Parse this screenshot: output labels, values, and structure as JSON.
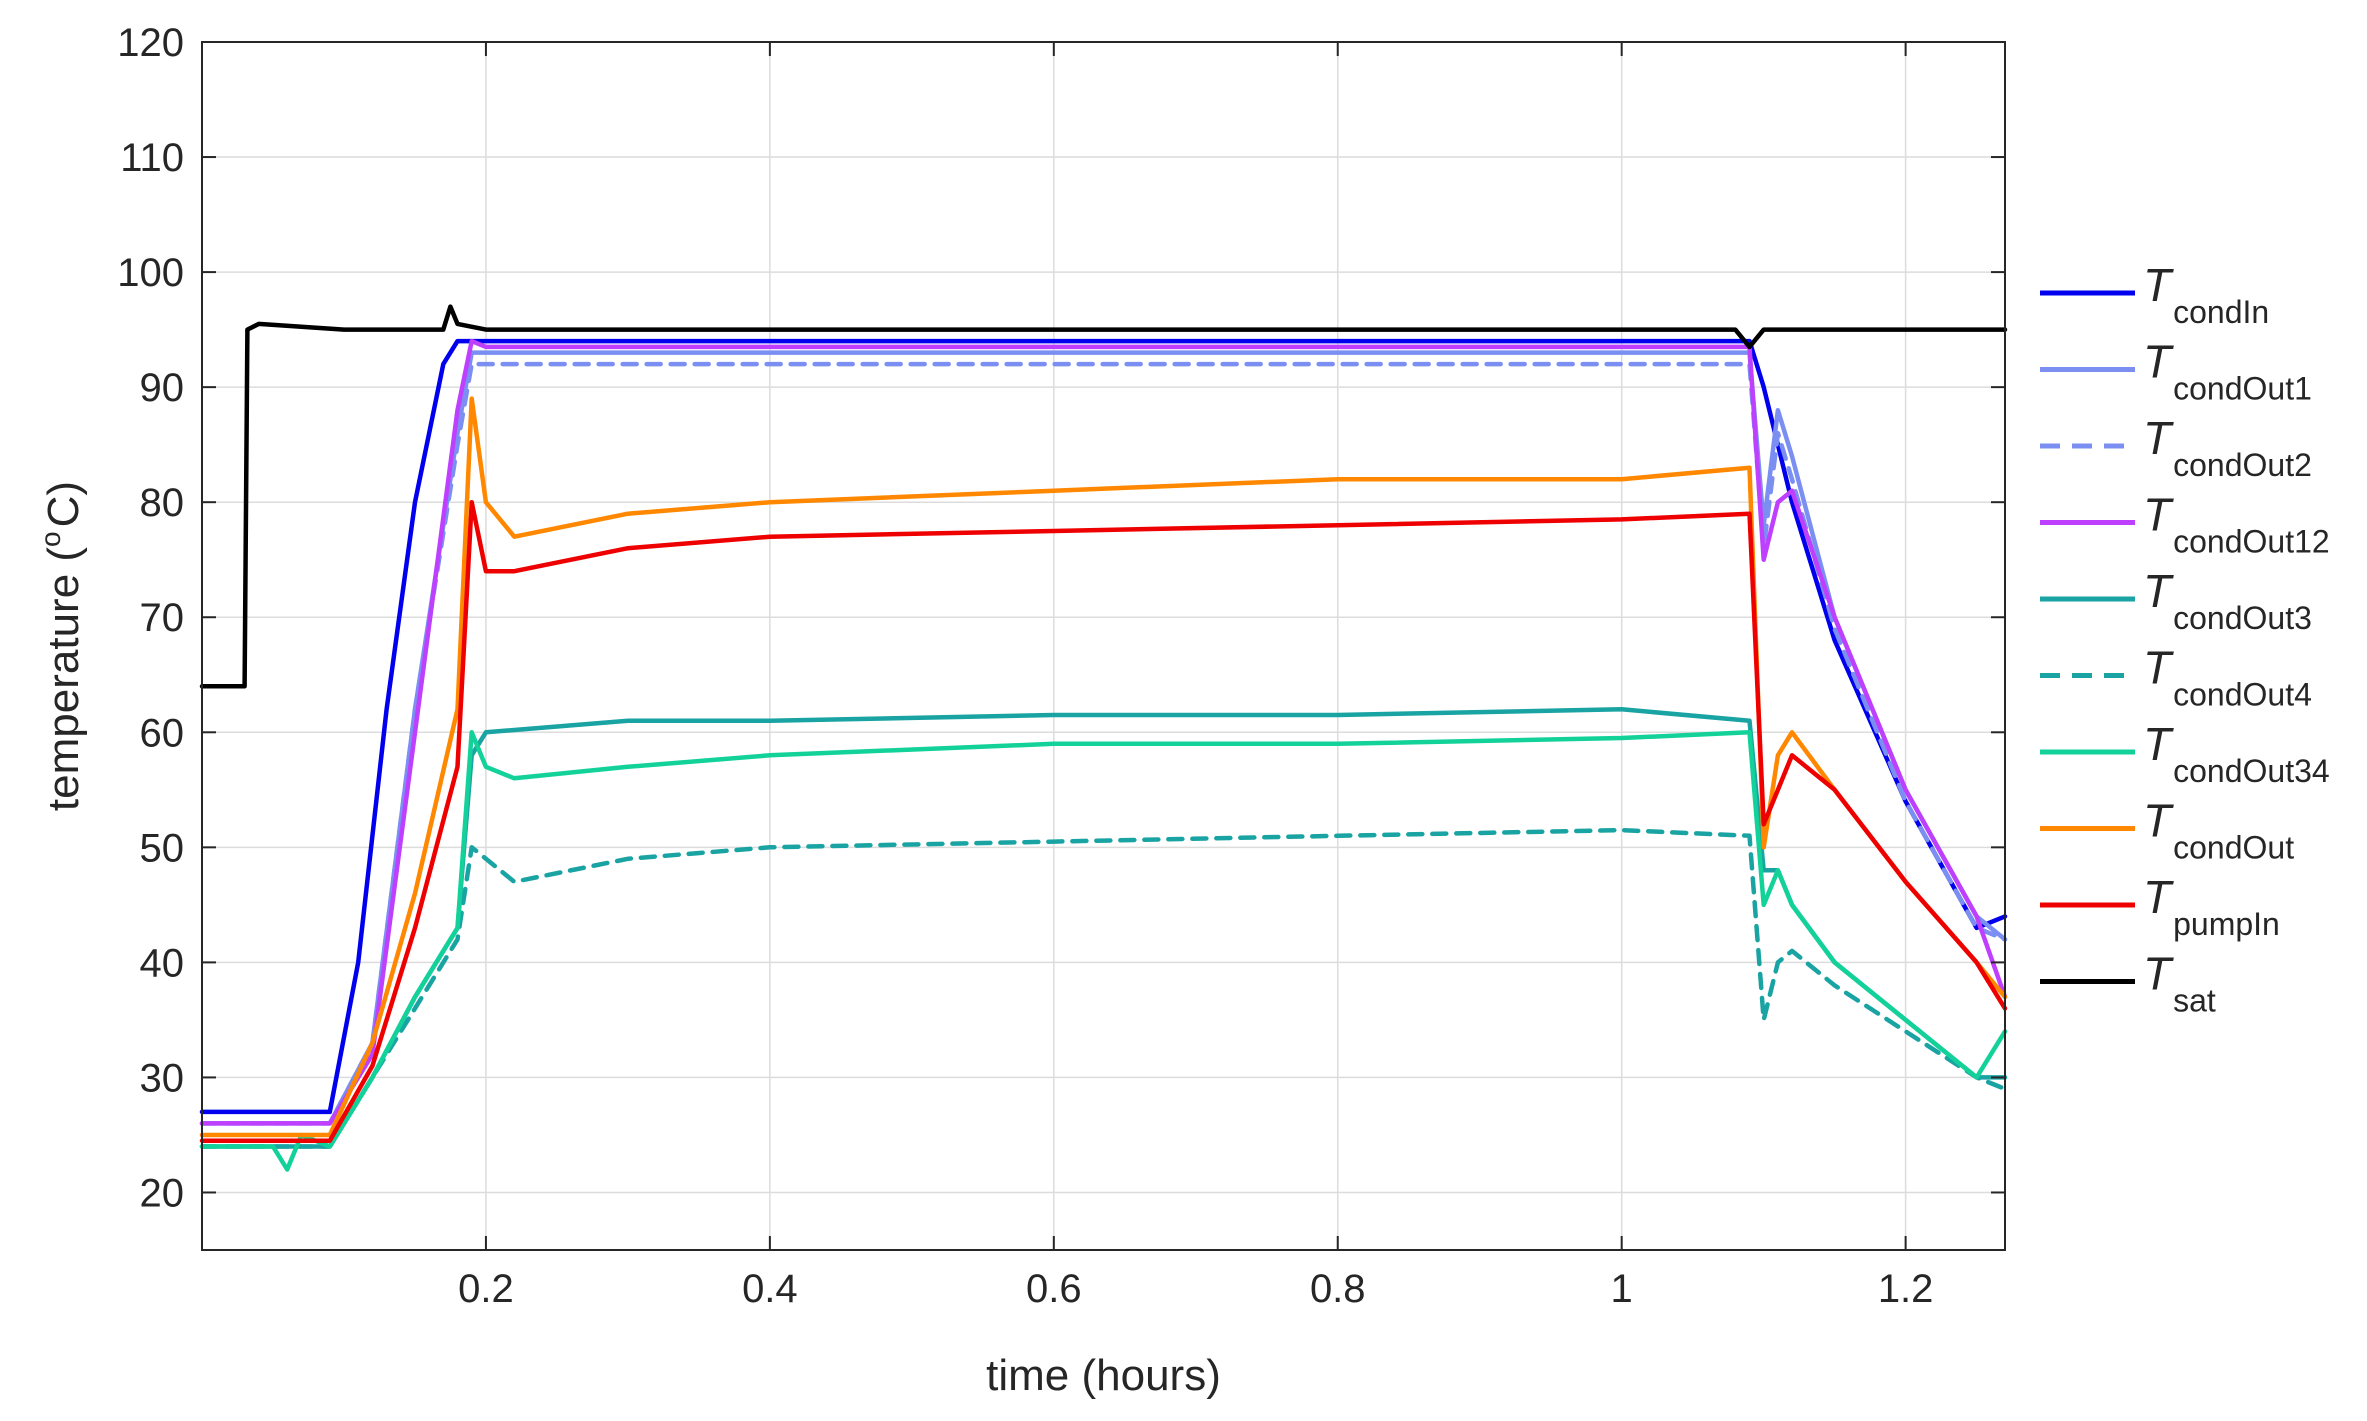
{
  "chart_data": {
    "type": "line",
    "title": "",
    "xlabel": "time (hours)",
    "ylabel_main": "temperature (",
    "ylabel_degree": "o",
    "ylabel_unit": "C)",
    "xlim": [
      0,
      1.27
    ],
    "ylim": [
      15,
      120
    ],
    "xticks": [
      0.2,
      0.4,
      0.6,
      0.8,
      1,
      1.2
    ],
    "xtick_labels": [
      "0.2",
      "0.4",
      "0.6",
      "0.8",
      "1",
      "1.2"
    ],
    "yticks": [
      20,
      30,
      40,
      50,
      60,
      70,
      80,
      90,
      100,
      110,
      120
    ],
    "ytick_labels": [
      "20",
      "30",
      "40",
      "50",
      "60",
      "70",
      "80",
      "90",
      "100",
      "110",
      "120"
    ],
    "grid": true,
    "legend_position": "outside-right",
    "series": [
      {
        "name": "T",
        "sub": "condIn",
        "color": "#0000ee",
        "dash": "solid",
        "points": [
          [
            0,
            27
          ],
          [
            0.09,
            27
          ],
          [
            0.11,
            40
          ],
          [
            0.13,
            62
          ],
          [
            0.15,
            80
          ],
          [
            0.17,
            92
          ],
          [
            0.18,
            94
          ],
          [
            0.2,
            94
          ],
          [
            0.4,
            94
          ],
          [
            0.6,
            94
          ],
          [
            0.8,
            94
          ],
          [
            1.0,
            94
          ],
          [
            1.09,
            94
          ],
          [
            1.1,
            90
          ],
          [
            1.12,
            80
          ],
          [
            1.15,
            68
          ],
          [
            1.2,
            54
          ],
          [
            1.25,
            43
          ],
          [
            1.27,
            44
          ]
        ]
      },
      {
        "name": "T",
        "sub": "condOut1",
        "color": "#7b8ff2",
        "dash": "solid",
        "points": [
          [
            0,
            26
          ],
          [
            0.09,
            26
          ],
          [
            0.12,
            33
          ],
          [
            0.15,
            62
          ],
          [
            0.18,
            86
          ],
          [
            0.19,
            93
          ],
          [
            0.2,
            93
          ],
          [
            0.4,
            93
          ],
          [
            0.6,
            93
          ],
          [
            0.8,
            93
          ],
          [
            1.0,
            93
          ],
          [
            1.09,
            93
          ],
          [
            1.1,
            78
          ],
          [
            1.11,
            88
          ],
          [
            1.12,
            84
          ],
          [
            1.15,
            70
          ],
          [
            1.2,
            55
          ],
          [
            1.25,
            44
          ],
          [
            1.27,
            42
          ]
        ]
      },
      {
        "name": "T",
        "sub": "condOut2",
        "color": "#7b8ff2",
        "dash": "dash",
        "points": [
          [
            0,
            26
          ],
          [
            0.09,
            26
          ],
          [
            0.12,
            33
          ],
          [
            0.15,
            62
          ],
          [
            0.18,
            85
          ],
          [
            0.19,
            92
          ],
          [
            0.2,
            92
          ],
          [
            0.4,
            92
          ],
          [
            0.6,
            92
          ],
          [
            0.8,
            92
          ],
          [
            1.0,
            92
          ],
          [
            1.09,
            92
          ],
          [
            1.1,
            76
          ],
          [
            1.11,
            86
          ],
          [
            1.12,
            82
          ],
          [
            1.15,
            69
          ],
          [
            1.2,
            54
          ],
          [
            1.25,
            43
          ],
          [
            1.27,
            42
          ]
        ]
      },
      {
        "name": "T",
        "sub": "condOut12",
        "color": "#bf3fff",
        "dash": "solid",
        "points": [
          [
            0,
            26
          ],
          [
            0.09,
            26
          ],
          [
            0.12,
            32
          ],
          [
            0.15,
            60
          ],
          [
            0.18,
            88
          ],
          [
            0.19,
            94
          ],
          [
            0.2,
            93.5
          ],
          [
            0.4,
            93.5
          ],
          [
            0.6,
            93.5
          ],
          [
            0.8,
            93.5
          ],
          [
            1.0,
            93.5
          ],
          [
            1.09,
            93.5
          ],
          [
            1.1,
            75
          ],
          [
            1.11,
            80
          ],
          [
            1.12,
            81
          ],
          [
            1.15,
            70
          ],
          [
            1.2,
            55
          ],
          [
            1.25,
            44
          ],
          [
            1.27,
            37
          ]
        ]
      },
      {
        "name": "T",
        "sub": "condOut3",
        "color": "#1aa3a3",
        "dash": "solid",
        "points": [
          [
            0,
            24
          ],
          [
            0.09,
            24
          ],
          [
            0.12,
            30
          ],
          [
            0.15,
            37
          ],
          [
            0.18,
            43
          ],
          [
            0.19,
            58
          ],
          [
            0.2,
            60
          ],
          [
            0.3,
            61
          ],
          [
            0.4,
            61
          ],
          [
            0.6,
            61.5
          ],
          [
            0.8,
            61.5
          ],
          [
            1.0,
            62
          ],
          [
            1.09,
            61
          ],
          [
            1.1,
            48
          ],
          [
            1.11,
            48
          ],
          [
            1.12,
            45
          ],
          [
            1.15,
            40
          ],
          [
            1.2,
            35
          ],
          [
            1.25,
            30
          ],
          [
            1.27,
            30
          ]
        ]
      },
      {
        "name": "T",
        "sub": "condOut4",
        "color": "#1aa3a3",
        "dash": "dash",
        "points": [
          [
            0,
            24
          ],
          [
            0.09,
            24
          ],
          [
            0.12,
            30
          ],
          [
            0.15,
            36
          ],
          [
            0.18,
            42
          ],
          [
            0.19,
            50
          ],
          [
            0.2,
            49
          ],
          [
            0.22,
            47
          ],
          [
            0.3,
            49
          ],
          [
            0.4,
            50
          ],
          [
            0.6,
            50.5
          ],
          [
            0.8,
            51
          ],
          [
            1.0,
            51.5
          ],
          [
            1.09,
            51
          ],
          [
            1.1,
            35
          ],
          [
            1.11,
            40
          ],
          [
            1.12,
            41
          ],
          [
            1.15,
            38
          ],
          [
            1.2,
            34
          ],
          [
            1.25,
            30
          ],
          [
            1.27,
            29
          ]
        ]
      },
      {
        "name": "T",
        "sub": "condOut34",
        "color": "#12d29a",
        "dash": "solid",
        "points": [
          [
            0,
            24
          ],
          [
            0.05,
            24
          ],
          [
            0.06,
            22
          ],
          [
            0.07,
            25
          ],
          [
            0.09,
            24
          ],
          [
            0.12,
            30
          ],
          [
            0.15,
            37
          ],
          [
            0.18,
            43
          ],
          [
            0.19,
            60
          ],
          [
            0.2,
            57
          ],
          [
            0.22,
            56
          ],
          [
            0.3,
            57
          ],
          [
            0.4,
            58
          ],
          [
            0.6,
            59
          ],
          [
            0.8,
            59
          ],
          [
            1.0,
            59.5
          ],
          [
            1.09,
            60
          ],
          [
            1.1,
            45
          ],
          [
            1.11,
            48
          ],
          [
            1.12,
            45
          ],
          [
            1.15,
            40
          ],
          [
            1.2,
            35
          ],
          [
            1.25,
            30
          ],
          [
            1.27,
            34
          ]
        ]
      },
      {
        "name": "T",
        "sub": "condOut",
        "color": "#ff8800",
        "dash": "solid",
        "points": [
          [
            0,
            25
          ],
          [
            0.09,
            25
          ],
          [
            0.12,
            33
          ],
          [
            0.15,
            46
          ],
          [
            0.18,
            62
          ],
          [
            0.19,
            89
          ],
          [
            0.2,
            80
          ],
          [
            0.22,
            77
          ],
          [
            0.3,
            79
          ],
          [
            0.4,
            80
          ],
          [
            0.6,
            81
          ],
          [
            0.8,
            82
          ],
          [
            1.0,
            82
          ],
          [
            1.09,
            83
          ],
          [
            1.1,
            50
          ],
          [
            1.11,
            58
          ],
          [
            1.12,
            60
          ],
          [
            1.15,
            55
          ],
          [
            1.2,
            47
          ],
          [
            1.25,
            40
          ],
          [
            1.27,
            37
          ]
        ]
      },
      {
        "name": "T",
        "sub": "pumpIn",
        "color": "#ee0000",
        "dash": "solid",
        "points": [
          [
            0,
            24.5
          ],
          [
            0.09,
            24.5
          ],
          [
            0.12,
            31
          ],
          [
            0.15,
            43
          ],
          [
            0.18,
            57
          ],
          [
            0.19,
            80
          ],
          [
            0.2,
            74
          ],
          [
            0.22,
            74
          ],
          [
            0.3,
            76
          ],
          [
            0.4,
            77
          ],
          [
            0.6,
            77.5
          ],
          [
            0.8,
            78
          ],
          [
            1.0,
            78.5
          ],
          [
            1.09,
            79
          ],
          [
            1.1,
            52
          ],
          [
            1.11,
            55
          ],
          [
            1.12,
            58
          ],
          [
            1.15,
            55
          ],
          [
            1.2,
            47
          ],
          [
            1.25,
            40
          ],
          [
            1.27,
            36
          ]
        ]
      },
      {
        "name": "T",
        "sub": "sat",
        "color": "#000000",
        "dash": "solid",
        "points": [
          [
            0,
            64
          ],
          [
            0.03,
            64
          ],
          [
            0.032,
            95
          ],
          [
            0.04,
            95.5
          ],
          [
            0.1,
            95
          ],
          [
            0.17,
            95
          ],
          [
            0.175,
            97
          ],
          [
            0.18,
            95.5
          ],
          [
            0.2,
            95
          ],
          [
            0.4,
            95
          ],
          [
            0.6,
            95
          ],
          [
            0.8,
            95
          ],
          [
            1.0,
            95
          ],
          [
            1.08,
            95
          ],
          [
            1.09,
            93.5
          ],
          [
            1.1,
            95
          ],
          [
            1.27,
            95
          ]
        ]
      }
    ]
  }
}
